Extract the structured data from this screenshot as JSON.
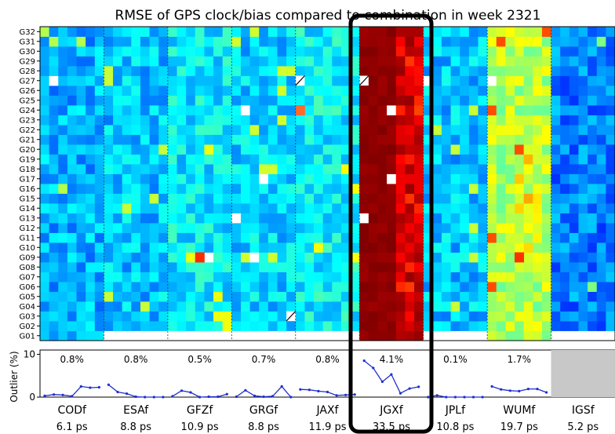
{
  "chart_data": {
    "type": "heatmap",
    "title": "RMSE of GPS clock/bias compared to combination in week 2321",
    "satellites": [
      "G01",
      "G02",
      "G03",
      "G04",
      "G05",
      "G06",
      "G07",
      "G08",
      "G09",
      "G10",
      "G11",
      "G12",
      "G13",
      "G14",
      "G15",
      "G16",
      "G17",
      "G18",
      "G19",
      "G20",
      "G21",
      "G22",
      "G23",
      "G24",
      "G25",
      "G26",
      "G27",
      "G28",
      "G29",
      "G30",
      "G31",
      "G32"
    ],
    "days_per_center": 7,
    "centers": [
      {
        "name": "CODf",
        "rmse": "6.1 ps",
        "outlier_label": "0.8%",
        "outlier_values": [
          0.3,
          0.6,
          0.5,
          0.2,
          2.5,
          2.2,
          2.3
        ]
      },
      {
        "name": "ESAf",
        "rmse": "8.8 ps",
        "outlier_label": "0.8%",
        "outlier_values": [
          2.9,
          1.2,
          0.8,
          0.1,
          0,
          0,
          0
        ]
      },
      {
        "name": "GFZf",
        "rmse": "10.9 ps",
        "outlier_label": "0.5%",
        "outlier_values": [
          0.2,
          1.5,
          1.1,
          0,
          0.1,
          0.1,
          0.7
        ]
      },
      {
        "name": "GRGf",
        "rmse": "8.8 ps",
        "outlier_label": "0.7%",
        "outlier_values": [
          0.1,
          1.6,
          0.3,
          0.1,
          0.2,
          2.5,
          0
        ]
      },
      {
        "name": "JAXf",
        "rmse": "11.9 ps",
        "outlier_label": "0.8%",
        "outlier_values": [
          1.8,
          1.7,
          1.4,
          1.2,
          0.4,
          0.5,
          0.6
        ]
      },
      {
        "name": "JGXf",
        "rmse": "33.5 ps",
        "outlier_label": "4.1%",
        "outlier_values": [
          8.5,
          6.8,
          3.6,
          5.3,
          0.9,
          2.0,
          2.4
        ]
      },
      {
        "name": "JPLf",
        "rmse": "10.8 ps",
        "outlier_label": "0.1%",
        "outlier_values": [
          0,
          0.4,
          0,
          0,
          0,
          0,
          0
        ]
      },
      {
        "name": "WUMf",
        "rmse": "19.7 ps",
        "outlier_label": "1.7%",
        "outlier_values": [
          2.5,
          1.8,
          1.5,
          1.4,
          1.9,
          1.9,
          1.1
        ]
      },
      {
        "name": "IGSf",
        "rmse": "5.2 ps",
        "outlier_label": "",
        "outlier_values": []
      }
    ],
    "center_mean_level": [
      0.3,
      0.32,
      0.36,
      0.33,
      0.37,
      0.95,
      0.32,
      0.55,
      0.25
    ],
    "highlighted_center": "JGXf",
    "missing_cells": [
      {
        "center": "CODf",
        "day": 1,
        "sat": "G27"
      },
      {
        "center": "GFZf",
        "day": 4,
        "sat": "G09"
      },
      {
        "center": "GRGf",
        "day": 1,
        "sat": "G24"
      },
      {
        "center": "GRGf",
        "day": 3,
        "sat": "G17"
      },
      {
        "center": "GRGf",
        "day": 2,
        "sat": "G09"
      },
      {
        "center": "GRGf",
        "day": 0,
        "sat": "G13"
      },
      {
        "center": "JGXf",
        "day": 3,
        "sat": "G24"
      },
      {
        "center": "JGXf",
        "day": 3,
        "sat": "G17"
      },
      {
        "center": "JGXf",
        "day": 0,
        "sat": "G13"
      },
      {
        "center": "JPLf",
        "day": 0,
        "sat": "G27"
      },
      {
        "center": "WUMf",
        "day": 0,
        "sat": "G27"
      }
    ],
    "outlier_axis": {
      "label": "Outlier (%)",
      "ticks": [
        0,
        10
      ],
      "ylim": [
        0,
        11
      ]
    },
    "colormap": "jet"
  }
}
